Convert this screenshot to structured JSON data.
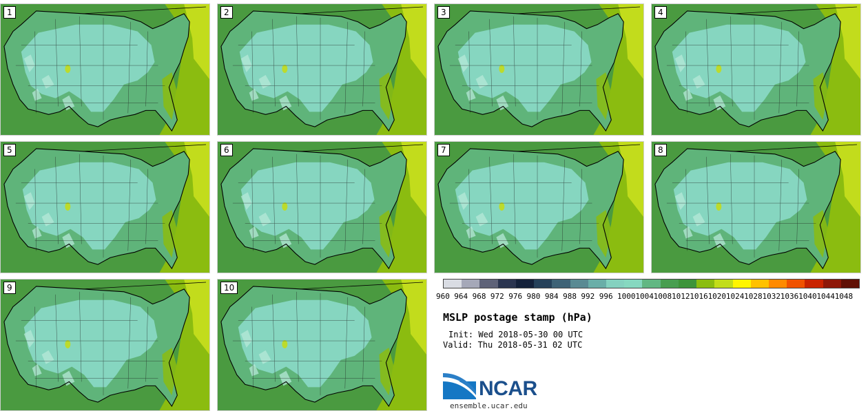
{
  "members": [
    {
      "label": "1"
    },
    {
      "label": "2"
    },
    {
      "label": "3"
    },
    {
      "label": "4"
    },
    {
      "label": "5"
    },
    {
      "label": "6"
    },
    {
      "label": "7"
    },
    {
      "label": "8"
    },
    {
      "label": "9"
    },
    {
      "label": "10"
    }
  ],
  "colorbar": {
    "levels": [
      "960",
      "964",
      "968",
      "972",
      "976",
      "980",
      "984",
      "988",
      "992",
      "996",
      "1000",
      "1004",
      "1008",
      "1012",
      "1016",
      "1020",
      "1024",
      "1028",
      "1032",
      "1036",
      "1040",
      "1044",
      "1048"
    ],
    "colors": [
      "#d9dce3",
      "#a5a8b8",
      "#5e6278",
      "#2b3550",
      "#14213a",
      "#26415a",
      "#3e6276",
      "#5a8a93",
      "#6aaea8",
      "#84d1bf",
      "#86d8c0",
      "#62b783",
      "#489e50",
      "#3d943a",
      "#8bbd10",
      "#c2dd1a",
      "#fff500",
      "#ffc100",
      "#ff8a00",
      "#f05200",
      "#c92300",
      "#8e1708",
      "#601005"
    ]
  },
  "title": "MSLP postage stamp (hPa)",
  "init": "Init: Wed 2018-05-30 00 UTC",
  "valid": "Valid: Thu 2018-05-31 02 UTC",
  "logo_text": "NCAR",
  "site": "ensemble.ucar.edu",
  "map_colors": {
    "ocean": "#4a9a40",
    "mid": "#5fb47a",
    "inner": "#86d6c0",
    "light": "#b6e8d8",
    "east_high": "#8bbc10",
    "east_higher": "#c2dc1c"
  }
}
